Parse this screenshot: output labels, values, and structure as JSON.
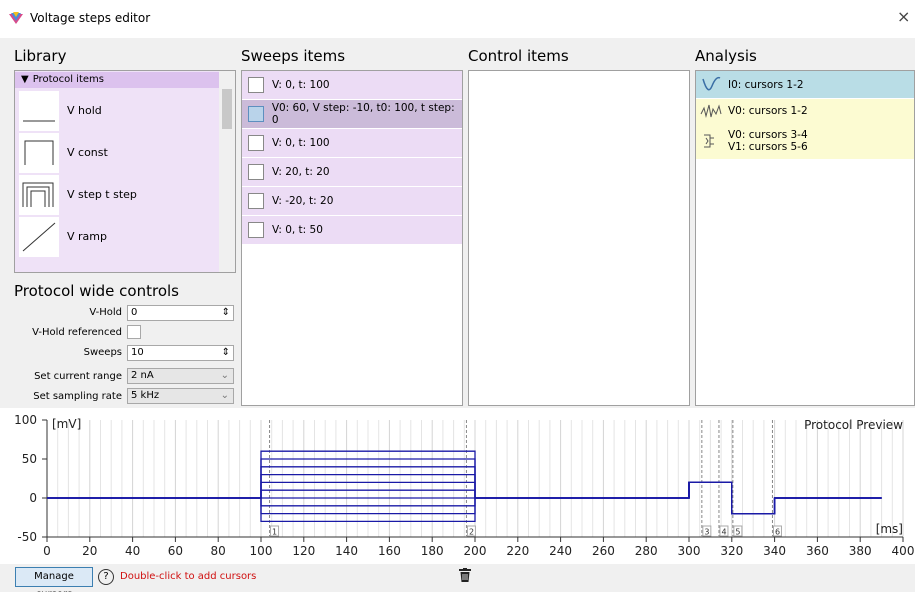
{
  "window": {
    "title": "Voltage steps editor",
    "close": "×"
  },
  "library": {
    "heading": "Library",
    "group": "Protocol items",
    "items": [
      "V hold",
      "V const",
      "V step t step",
      "V ramp"
    ]
  },
  "protocol_controls": {
    "heading": "Protocol wide controls",
    "v_hold": {
      "label": "V-Hold",
      "value": "0"
    },
    "v_hold_referenced": {
      "label": "V-Hold referenced"
    },
    "sweeps": {
      "label": "Sweeps",
      "value": "10"
    },
    "current_range": {
      "label": "Set current range",
      "value": "2 nA"
    },
    "sampling_rate": {
      "label": "Set sampling rate",
      "value": "5 kHz"
    }
  },
  "sweeps_items": {
    "heading": "Sweeps items",
    "items": [
      "V: 0, t: 100",
      "V0: 60, V step: -10, t0: 100, t step: 0",
      "V: 0, t: 100",
      "V: 20, t: 20",
      "V: -20, t: 20",
      "V: 0, t: 50"
    ]
  },
  "control_items": {
    "heading": "Control items"
  },
  "analysis": {
    "heading": "Analysis",
    "items": [
      [
        "I0: cursors 1-2"
      ],
      [
        "V0: cursors 1-2"
      ],
      [
        "V0: cursors 3-4",
        "V1: cursors 5-6"
      ]
    ]
  },
  "bottom_bar": {
    "manage_button": "Manage cursors",
    "help": "?",
    "hint": "Double-click to add cursors"
  },
  "chart_data": {
    "type": "line",
    "title": "Protocol Preview",
    "y_unit": "[mV]",
    "x_unit": "[ms]",
    "color": "#1a1aa6",
    "x": [
      0,
      100,
      100,
      200,
      200,
      300,
      300,
      320,
      320,
      340,
      340,
      390
    ],
    "series": [
      {
        "values": [
          0,
          0,
          60,
          60,
          0,
          0,
          20,
          20,
          -20,
          -20,
          0,
          0
        ]
      },
      {
        "values": [
          0,
          0,
          50,
          50,
          0,
          0,
          20,
          20,
          -20,
          -20,
          0,
          0
        ]
      },
      {
        "values": [
          0,
          0,
          40,
          40,
          0,
          0,
          20,
          20,
          -20,
          -20,
          0,
          0
        ]
      },
      {
        "values": [
          0,
          0,
          30,
          30,
          0,
          0,
          20,
          20,
          -20,
          -20,
          0,
          0
        ]
      },
      {
        "values": [
          0,
          0,
          20,
          20,
          0,
          0,
          20,
          20,
          -20,
          -20,
          0,
          0
        ]
      },
      {
        "values": [
          0,
          0,
          10,
          10,
          0,
          0,
          20,
          20,
          -20,
          -20,
          0,
          0
        ]
      },
      {
        "values": [
          0,
          0,
          0,
          0,
          0,
          0,
          20,
          20,
          -20,
          -20,
          0,
          0
        ]
      },
      {
        "values": [
          0,
          0,
          -10,
          -10,
          0,
          0,
          20,
          20,
          -20,
          -20,
          0,
          0
        ]
      },
      {
        "values": [
          0,
          0,
          -20,
          -20,
          0,
          0,
          20,
          20,
          -20,
          -20,
          0,
          0
        ]
      },
      {
        "values": [
          0,
          0,
          -30,
          -30,
          0,
          0,
          20,
          20,
          -20,
          -20,
          0,
          0
        ]
      }
    ],
    "cursors": [
      {
        "label": "1",
        "x": 104
      },
      {
        "label": "2",
        "x": 196
      },
      {
        "label": "3",
        "x": 306
      },
      {
        "label": "4",
        "x": 314
      },
      {
        "label": "5",
        "x": 320.5
      },
      {
        "label": "6",
        "x": 339
      }
    ],
    "xlim": [
      0,
      400
    ],
    "ylim": [
      -50,
      100
    ],
    "xticks": [
      0,
      20,
      40,
      60,
      80,
      100,
      120,
      140,
      160,
      180,
      200,
      220,
      240,
      260,
      280,
      300,
      320,
      340,
      360,
      380,
      400
    ],
    "yticks": [
      -50,
      0,
      50,
      100
    ],
    "grid": true
  }
}
